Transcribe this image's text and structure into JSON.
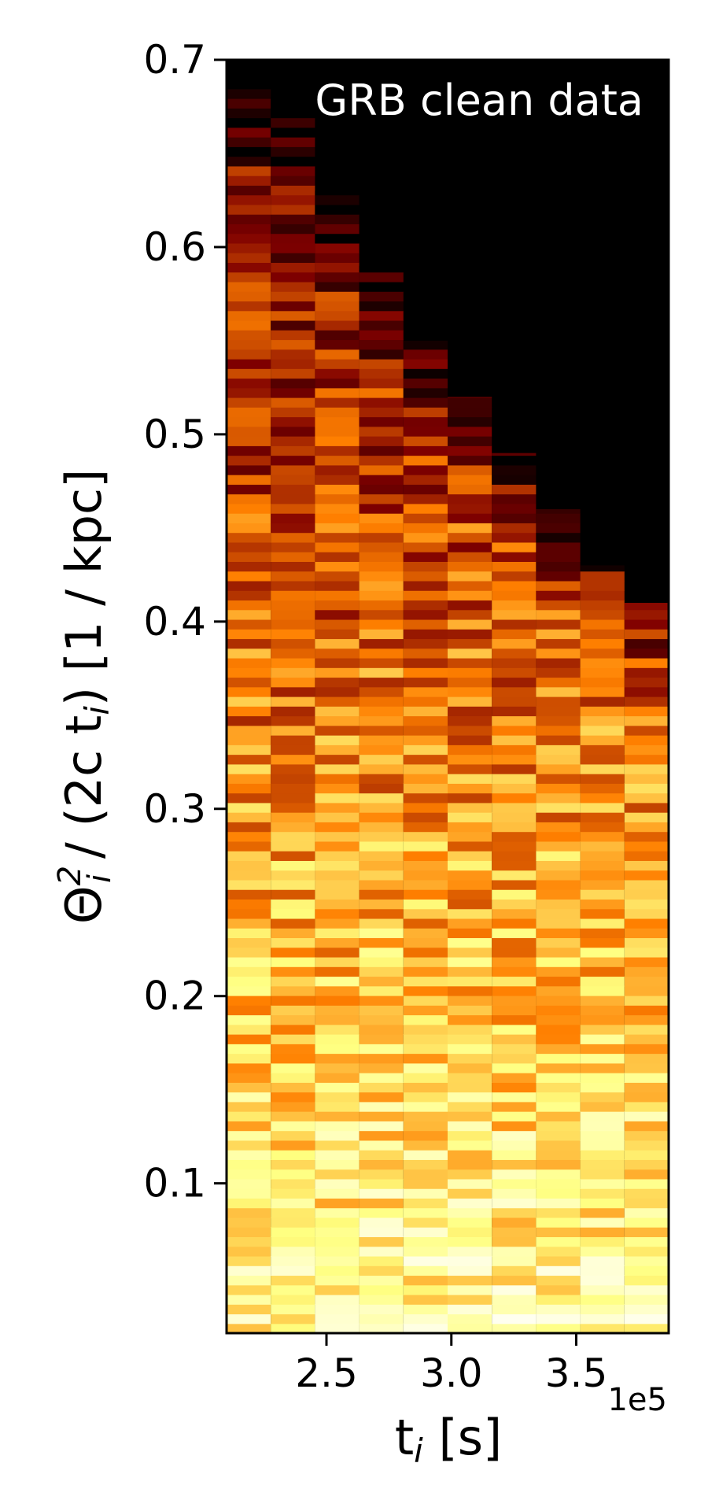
{
  "chart_data": {
    "type": "heatmap",
    "title": "GRB clean data",
    "xlabel_base": "t",
    "xlabel_sub": "i",
    "xlabel_unit": " [s]",
    "x_offset_label": "1e5",
    "ylabel_prefix": "Θ",
    "ylabel_sup": "2",
    "ylabel_sub": "i",
    "ylabel_mid": " / (2c t",
    "ylabel_sub2": "i",
    "ylabel_suffix": ") [1 / kpc]",
    "xlim": [
      2.1,
      3.87
    ],
    "ylim": [
      0.02,
      0.7
    ],
    "xticks": [
      2.5,
      3.0,
      3.5
    ],
    "xtick_labels": [
      "2.5",
      "3.0",
      "3.5"
    ],
    "yticks": [
      0.1,
      0.2,
      0.3,
      0.4,
      0.5,
      0.6,
      0.7
    ],
    "ytick_labels": [
      "0.1",
      "0.2",
      "0.3",
      "0.4",
      "0.5",
      "0.6",
      "0.7"
    ],
    "colormap": "afmhot",
    "background": "#000000",
    "n_rows": 132,
    "columns": [
      {
        "x0": 2.1,
        "x1": 2.277,
        "ymax": 0.7
      },
      {
        "x0": 2.277,
        "x1": 2.454,
        "ymax": 0.68
      },
      {
        "x0": 2.454,
        "x1": 2.631,
        "ymax": 0.63
      },
      {
        "x0": 2.631,
        "x1": 2.808,
        "ymax": 0.59
      },
      {
        "x0": 2.808,
        "x1": 2.985,
        "ymax": 0.55
      },
      {
        "x0": 2.985,
        "x1": 3.162,
        "ymax": 0.52
      },
      {
        "x0": 3.162,
        "x1": 3.339,
        "ymax": 0.49
      },
      {
        "x0": 3.339,
        "x1": 3.516,
        "ymax": 0.46
      },
      {
        "x0": 3.516,
        "x1": 3.693,
        "ymax": 0.43
      },
      {
        "x0": 3.693,
        "x1": 3.87,
        "ymax": 0.41
      }
    ]
  }
}
